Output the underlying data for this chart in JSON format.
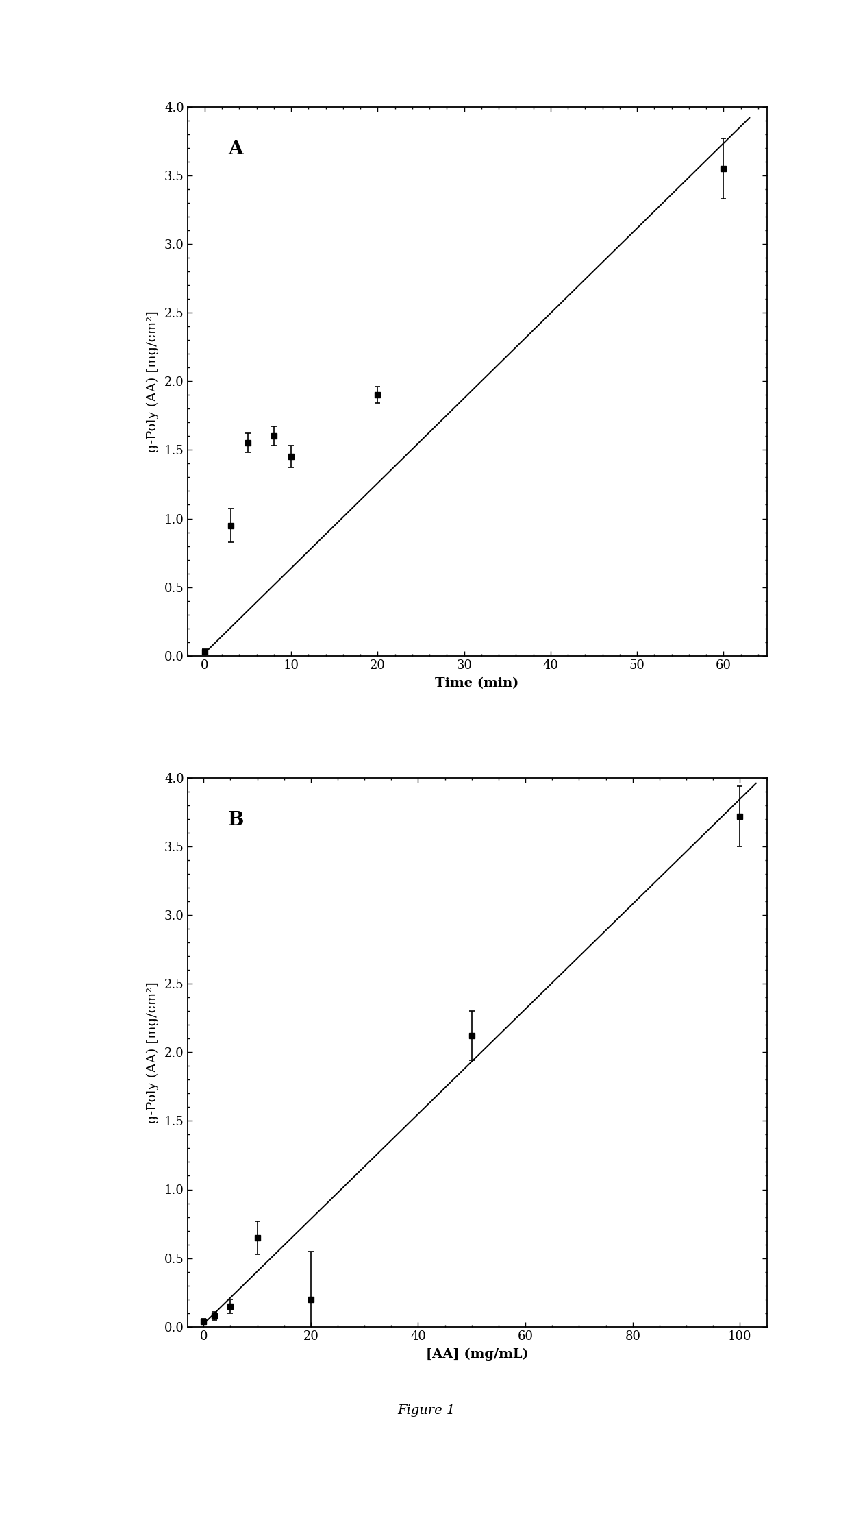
{
  "panel_A": {
    "label": "A",
    "x_data": [
      0,
      3,
      5,
      8,
      10,
      20,
      60
    ],
    "y_data": [
      0.03,
      0.95,
      1.55,
      1.6,
      1.45,
      1.9,
      3.55
    ],
    "y_err": [
      0.02,
      0.12,
      0.07,
      0.07,
      0.08,
      0.06,
      0.22
    ],
    "fit_x": [
      0,
      63
    ],
    "fit_y": [
      0.02,
      3.92
    ],
    "xlabel": "Time (min)",
    "ylabel": "g-Poly (AA) [mg/cm²]",
    "xlim": [
      -2,
      65
    ],
    "ylim": [
      0,
      4
    ],
    "xticks": [
      0,
      10,
      20,
      30,
      40,
      50,
      60
    ],
    "yticks": [
      0,
      0.5,
      1.0,
      1.5,
      2.0,
      2.5,
      3.0,
      3.5,
      4.0
    ]
  },
  "panel_B": {
    "label": "B",
    "x_data": [
      0,
      2,
      5,
      10,
      20,
      50,
      100
    ],
    "y_data": [
      0.04,
      0.08,
      0.15,
      0.65,
      0.2,
      2.12,
      3.72
    ],
    "y_err": [
      0.02,
      0.03,
      0.05,
      0.12,
      0.35,
      0.18,
      0.22
    ],
    "fit_x": [
      0,
      103
    ],
    "fit_y": [
      0.02,
      3.96
    ],
    "xlabel": "[AA] (mg/mL)",
    "ylabel": "g-Poly (AA) [mg/cm²]",
    "xlim": [
      -3,
      105
    ],
    "ylim": [
      0,
      4
    ],
    "xticks": [
      0,
      20,
      40,
      60,
      80,
      100
    ],
    "yticks": [
      0,
      0.5,
      1.0,
      1.5,
      2.0,
      2.5,
      3.0,
      3.5,
      4.0
    ]
  },
  "figure_label": "Figure 1",
  "background_color": "#ffffff",
  "marker_color": "#000000",
  "line_color": "#000000",
  "marker_style": "s",
  "marker_size": 6,
  "line_width": 1.4,
  "font_family": "DejaVu Serif",
  "label_fontsize": 14,
  "tick_fontsize": 13,
  "panel_label_fontsize": 20,
  "caption_fontsize": 14
}
